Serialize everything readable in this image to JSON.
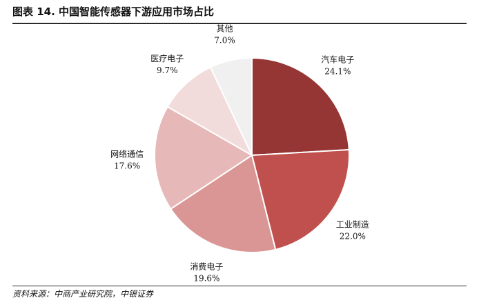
{
  "header": {
    "title": "图表 14.  中国智能传感器下游应用市场占比"
  },
  "footer": {
    "source": "资料来源：中商产业研究院，中银证券"
  },
  "chart_data": {
    "type": "pie",
    "title": "",
    "slices": [
      {
        "name": "汽车电子",
        "value": 24.1,
        "label": "24.1%",
        "color": "#953534"
      },
      {
        "name": "工业制造",
        "value": 22.0,
        "label": "22.0%",
        "color": "#c0504d"
      },
      {
        "name": "消费电子",
        "value": 19.6,
        "label": "19.6%",
        "color": "#d99694"
      },
      {
        "name": "网络通信",
        "value": 17.6,
        "label": "17.6%",
        "color": "#e6b9b8"
      },
      {
        "name": "医疗电子",
        "value": 9.7,
        "label": "9.7%",
        "color": "#f2dcdb"
      },
      {
        "name": "其他",
        "value": 7.0,
        "label": "7.0%",
        "color": "#f0f0f0"
      }
    ],
    "start_angle": "12 o'clock",
    "direction": "clockwise",
    "legend": "none"
  }
}
